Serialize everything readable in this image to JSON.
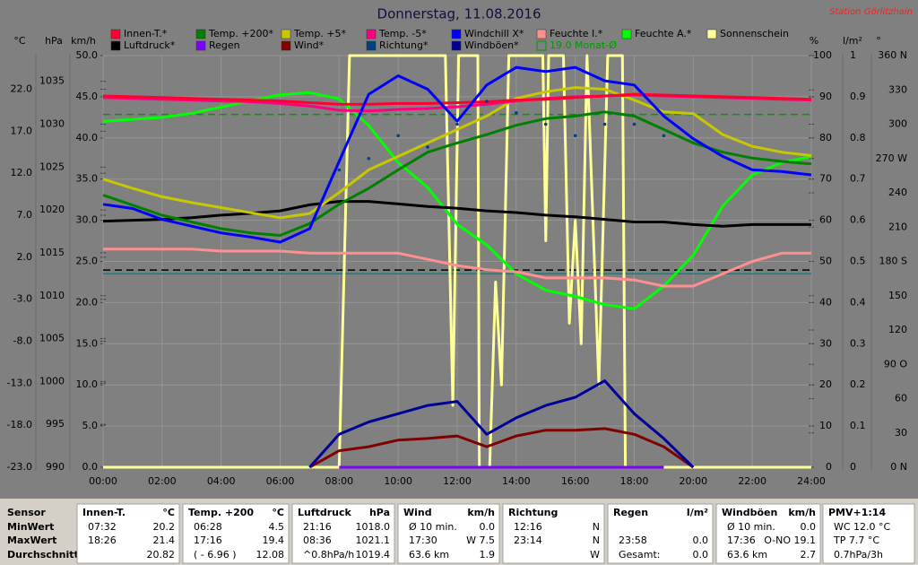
{
  "chart_data": {
    "type": "line",
    "title": "Donnerstag, 11.08.2016",
    "station": "Station Görlitzhain",
    "xlim": [
      0,
      24
    ],
    "xticks": [
      {
        "value": 0,
        "label": "00:00"
      },
      {
        "value": 2,
        "label": "02:00"
      },
      {
        "value": 4,
        "label": "04:00"
      },
      {
        "value": 6,
        "label": "06:00"
      },
      {
        "value": 8,
        "label": "08:00"
      },
      {
        "value": 10,
        "label": "10:00"
      },
      {
        "value": 12,
        "label": "12:00"
      },
      {
        "value": 14,
        "label": "14:00"
      },
      {
        "value": 16,
        "label": "16:00"
      },
      {
        "value": 18,
        "label": "18:00"
      },
      {
        "value": 20,
        "label": "20:00"
      },
      {
        "value": 22,
        "label": "22:00"
      },
      {
        "value": 24,
        "label": "24:00"
      }
    ],
    "grid": true,
    "axes": [
      {
        "unit": "°C",
        "side": "left",
        "lim": [
          -23,
          26
        ],
        "ticks": [
          {
            "value": -23,
            "label": "-23.0"
          },
          {
            "value": -18,
            "label": "-18.0"
          },
          {
            "value": -13,
            "label": "-13.0"
          },
          {
            "value": -8,
            "label": "-8.0"
          },
          {
            "value": -3,
            "label": "-3.0"
          },
          {
            "value": 2,
            "label": "2.0"
          },
          {
            "value": 7,
            "label": "7.0"
          },
          {
            "value": 12,
            "label": "12.0"
          },
          {
            "value": 17,
            "label": "17.0"
          },
          {
            "value": 22,
            "label": "22.0"
          }
        ]
      },
      {
        "unit": "hPa",
        "side": "left",
        "lim": [
          990,
          1038
        ],
        "ticks": [
          990,
          995,
          1000,
          1005,
          1010,
          1015,
          1020,
          1025,
          1030,
          1035
        ]
      },
      {
        "unit": "km/h",
        "side": "left",
        "lim": [
          0,
          50
        ],
        "grid": true,
        "ticks": [
          {
            "value": 0,
            "label": "0.0"
          },
          {
            "value": 5,
            "label": "5.0"
          },
          {
            "value": 10,
            "label": "10.0"
          },
          {
            "value": 15,
            "label": "15.0"
          },
          {
            "value": 20,
            "label": "20.0"
          },
          {
            "value": 25,
            "label": "25.0"
          },
          {
            "value": 30,
            "label": "30.0"
          },
          {
            "value": 35,
            "label": "35.0"
          },
          {
            "value": 40,
            "label": "40.0"
          },
          {
            "value": 45,
            "label": "45.0"
          },
          {
            "value": 50,
            "label": "50.0"
          }
        ]
      },
      {
        "unit": "%",
        "side": "right",
        "lim": [
          0,
          100
        ],
        "ticks": [
          0,
          10,
          20,
          30,
          40,
          50,
          60,
          70,
          80,
          90,
          100
        ]
      },
      {
        "unit": "l/m²",
        "side": "right",
        "lim": [
          0,
          1
        ],
        "ticks": [
          0,
          0.1,
          0.2,
          0.3,
          0.4,
          0.5,
          0.6,
          0.7,
          0.8,
          0.9,
          1
        ]
      },
      {
        "unit": "°",
        "side": "right",
        "lim": [
          0,
          360
        ],
        "ticks": [
          {
            "value": 0,
            "label": "0  N"
          },
          30,
          60,
          {
            "value": 90,
            "label": "90  O"
          },
          120,
          150,
          {
            "value": 180,
            "label": "180 S"
          },
          210,
          240,
          {
            "value": 270,
            "label": "270 W"
          },
          300,
          330,
          {
            "value": 360,
            "label": "360 N"
          }
        ]
      }
    ],
    "x": [
      0,
      1,
      2,
      3,
      4,
      5,
      6,
      7,
      8,
      9,
      10,
      11,
      12,
      13,
      14,
      15,
      16,
      17,
      18,
      19,
      20,
      21,
      22,
      23,
      24
    ],
    "series": [
      {
        "name": "Innen-T.*",
        "color": "#ff0030",
        "axis": 0,
        "values": [
          21.2,
          21.1,
          21.0,
          20.9,
          20.8,
          20.7,
          20.6,
          20.4,
          20.2,
          20.2,
          20.3,
          20.3,
          20.4,
          20.5,
          20.7,
          20.8,
          21.0,
          21.2,
          21.4,
          21.3,
          21.2,
          21.1,
          21.0,
          20.9,
          20.8
        ]
      },
      {
        "name": "Temp. +200*",
        "color": "#008000",
        "axis": 0,
        "values": [
          9.4,
          8.2,
          7.0,
          6.2,
          5.4,
          4.9,
          4.6,
          6.0,
          8.3,
          10.2,
          12.4,
          14.5,
          15.6,
          16.6,
          17.7,
          18.5,
          18.8,
          19.3,
          18.8,
          17.2,
          15.6,
          14.5,
          13.8,
          13.4,
          13.1
        ]
      },
      {
        "name": "Temp. +5*",
        "color": "#c8c800",
        "axis": 0,
        "values": [
          11.3,
          10.2,
          9.2,
          8.5,
          7.9,
          7.3,
          6.7,
          7.2,
          9.7,
          12.4,
          14.0,
          15.6,
          17.2,
          18.8,
          20.9,
          21.7,
          22.2,
          22.0,
          20.7,
          19.3,
          19.1,
          16.6,
          15.2,
          14.5,
          14.1
        ]
      },
      {
        "name": "Temp. -5*",
        "color": "#ff0080",
        "axis": 0,
        "values": [
          21.0,
          20.9,
          20.8,
          20.7,
          20.6,
          20.5,
          20.3,
          20.0,
          19.5,
          19.4,
          19.6,
          19.7,
          19.9,
          20.2,
          20.6,
          20.9,
          21.1,
          21.2,
          21.3,
          21.2,
          21.1,
          21.0,
          20.9,
          20.8,
          20.7
        ]
      },
      {
        "name": "Windchill X*",
        "color": "#0000ff",
        "axis": 0,
        "values": [
          8.3,
          7.8,
          6.5,
          5.7,
          4.9,
          4.4,
          3.8,
          5.4,
          13.4,
          21.4,
          23.6,
          22.0,
          18.2,
          22.5,
          24.6,
          24.1,
          24.6,
          23.0,
          22.5,
          18.8,
          16.1,
          14.0,
          12.4,
          12.2,
          11.8
        ]
      },
      {
        "name": "Feuchte I.*",
        "color": "#ff9090",
        "axis": 3,
        "values": [
          53,
          53,
          53,
          53,
          52.5,
          52.5,
          52.5,
          52,
          52,
          52,
          52,
          50.5,
          49,
          48,
          47.5,
          46,
          46,
          46,
          45.5,
          44,
          44,
          47,
          50,
          52,
          52
        ]
      },
      {
        "name": "Feuchte A.*",
        "color": "#00ff00",
        "axis": 3,
        "values": [
          84,
          84.5,
          85,
          86,
          87.5,
          89,
          90.5,
          91,
          89.5,
          83,
          74,
          68,
          59,
          54,
          47,
          43,
          41.5,
          39.5,
          38.5,
          44,
          51.5,
          63.5,
          71,
          74,
          75.5
        ]
      },
      {
        "name": "Sonnenschein",
        "color": "#ffff99",
        "axis": 3,
        "x": [
          0,
          8.0,
          8.35,
          11.6,
          11.85,
          12.05,
          12.7,
          12.75,
          13.1,
          13.3,
          13.5,
          13.75,
          14.9,
          15.0,
          15.1,
          15.6,
          15.8,
          16.0,
          16.2,
          16.4,
          16.8,
          17.1,
          17.4,
          17.6,
          17.7,
          24
        ],
        "values": [
          0,
          0,
          100,
          100,
          15,
          100,
          100,
          0,
          0,
          45,
          20,
          100,
          100,
          55,
          100,
          100,
          35,
          60,
          30,
          100,
          20,
          100,
          100,
          100,
          0,
          0
        ]
      },
      {
        "name": "Luftdruck*",
        "color": "#000000",
        "axis": 1,
        "values": [
          1018.7,
          1018.8,
          1018.9,
          1019.1,
          1019.4,
          1019.6,
          1019.9,
          1020.6,
          1021.0,
          1021.0,
          1020.7,
          1020.4,
          1020.2,
          1019.9,
          1019.7,
          1019.4,
          1019.2,
          1018.9,
          1018.6,
          1018.6,
          1018.3,
          1018.1,
          1018.3,
          1018.3,
          1018.3
        ]
      },
      {
        "name": "Regen",
        "color": "#8000ff",
        "axis": 4,
        "values": [
          null,
          null,
          null,
          null,
          null,
          null,
          null,
          null,
          0,
          0,
          0,
          0,
          0,
          0,
          0,
          0,
          0,
          0,
          0,
          0,
          null,
          null,
          null,
          null,
          null
        ]
      },
      {
        "name": "Wind*",
        "color": "#800000",
        "axis": 2,
        "values": [
          null,
          null,
          null,
          null,
          null,
          null,
          null,
          0,
          2.0,
          2.5,
          3.3,
          3.5,
          3.8,
          2.5,
          3.8,
          4.5,
          4.5,
          4.7,
          4.0,
          2.5,
          0,
          null,
          null,
          null,
          null
        ]
      },
      {
        "name": "Richtung*",
        "color": "#004080",
        "axis": 5,
        "type": "scatter",
        "values": [
          null,
          null,
          null,
          null,
          null,
          null,
          null,
          null,
          260,
          270,
          290,
          280,
          300,
          320,
          310,
          300,
          290,
          300,
          300,
          290,
          null,
          null,
          null,
          null,
          null
        ]
      },
      {
        "name": "Windböen*",
        "color": "#000099",
        "axis": 2,
        "values": [
          null,
          null,
          null,
          null,
          null,
          null,
          null,
          0,
          4.0,
          5.5,
          6.5,
          7.5,
          8.0,
          4.0,
          6.0,
          7.5,
          8.5,
          10.5,
          6.5,
          3.5,
          0,
          null,
          null,
          null,
          null
        ]
      }
    ],
    "reference_lines": [
      {
        "name": "19.0 Monat-Ø",
        "value": 19.0,
        "axis": 0,
        "color": "#009900",
        "dashed": true
      },
      {
        "value": 1013,
        "axis": 1,
        "color": "#000000",
        "dashed": true
      },
      {
        "value": 47,
        "axis": 3,
        "color": "#008888",
        "dashed": false
      }
    ]
  },
  "stats_table": {
    "row_labels": [
      "Sensor",
      "MinWert",
      "MaxWert",
      "Durchschnitt"
    ],
    "groups": [
      {
        "name": "Innen-T.",
        "unit": "°C",
        "rows": [
          [
            "07:32",
            "20.2"
          ],
          [
            "18:26",
            "21.4"
          ],
          [
            null,
            "20.82"
          ]
        ]
      },
      {
        "name": "Temp. +200",
        "unit": "°C",
        "rows": [
          [
            "06:28",
            "4.5"
          ],
          [
            "17:16",
            "19.4"
          ],
          [
            "( - 6.96 )",
            "12.08"
          ]
        ]
      },
      {
        "name": "Luftdruck",
        "unit": "hPa",
        "rows": [
          [
            "21:16",
            "1018.0"
          ],
          [
            "08:36",
            "1021.1"
          ],
          [
            "^0.8hPa/h",
            "1019.4"
          ]
        ]
      },
      {
        "name": "Wind",
        "unit": "km/h",
        "rows": [
          [
            "Ø 10 min.",
            "0.0"
          ],
          [
            "17:30",
            "W 7.5"
          ],
          [
            "63.6 km",
            "1.9"
          ]
        ]
      },
      {
        "name": "Richtung",
        "rows": [
          [
            "12:16",
            "N"
          ],
          [
            "23:14",
            "N"
          ],
          [
            null,
            "W"
          ]
        ]
      },
      {
        "name": "Regen",
        "unit": "l/m²",
        "rows": [
          [
            null,
            null
          ],
          [
            "23:58",
            "0.0"
          ],
          [
            "Gesamt:",
            "0.0"
          ]
        ]
      },
      {
        "name": "Windböen",
        "unit": "km/h",
        "rows": [
          [
            "Ø 10 min.",
            "0.0"
          ],
          [
            "17:36",
            "O-NO 19.1"
          ],
          [
            "63.6 km",
            "2.7"
          ]
        ]
      },
      {
        "name": "PMV+1:14",
        "rows": [
          [
            "WC 12.0 °C"
          ],
          [
            "TP 7.7 °C"
          ],
          [
            "0.7hPa/3h"
          ]
        ]
      }
    ]
  }
}
